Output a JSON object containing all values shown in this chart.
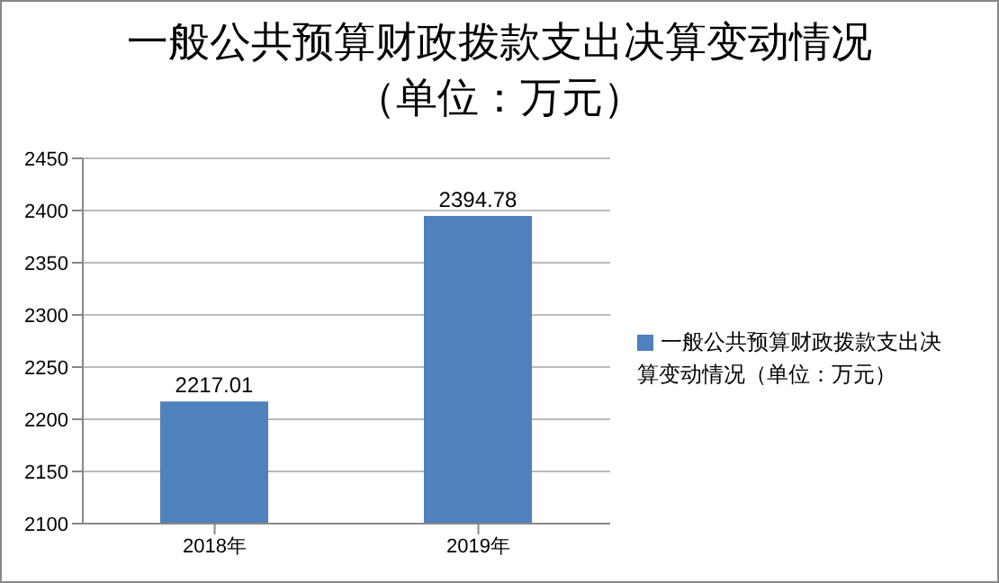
{
  "chart_data": {
    "type": "bar",
    "title": "一般公共预算财政拨款支出决算变动情况（单位：万元）",
    "categories": [
      "2018年",
      "2019年"
    ],
    "series": [
      {
        "name": "一般公共预算财政拨款支出决算变动情况（单位：万元）",
        "color": "#4f81bd",
        "values": [
          2217.01,
          2394.78
        ]
      }
    ],
    "ylim": [
      2100,
      2450
    ],
    "yticks": [
      2100,
      2150,
      2200,
      2250,
      2300,
      2350,
      2400,
      2450
    ],
    "grid": "y",
    "legend": "right",
    "data_labels": true
  }
}
